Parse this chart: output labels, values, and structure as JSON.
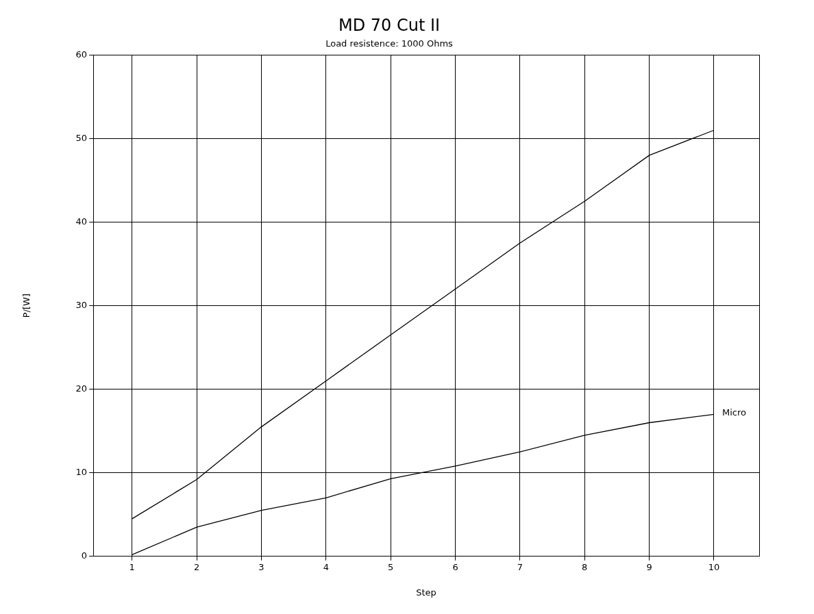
{
  "chart_data": {
    "type": "line",
    "title": "MD 70 Cut II",
    "subtitle": "Load resistence: 1000 Ohms",
    "xlabel": "Step",
    "ylabel": "P/[W]",
    "x": [
      1,
      2,
      3,
      4,
      5,
      6,
      7,
      8,
      9,
      10
    ],
    "series": [
      {
        "color": "#000000",
        "values": [
          4.5,
          9.2,
          15.5,
          21,
          26.5,
          32,
          37.5,
          42.5,
          48,
          51
        ]
      },
      {
        "name": "Micro",
        "color": "#000000",
        "values": [
          0.2,
          3.5,
          5.5,
          7,
          9.3,
          10.8,
          12.5,
          14.5,
          16,
          17
        ]
      }
    ],
    "xlim": [
      0.4,
      10.7
    ],
    "xticks": [
      1,
      2,
      3,
      4,
      5,
      6,
      7,
      8,
      9,
      10
    ],
    "ylim": [
      0,
      60
    ],
    "yticks": [
      0,
      10,
      20,
      30,
      40,
      50,
      60
    ],
    "grid": true,
    "legend": false,
    "marker": "none",
    "line_style": "solid"
  }
}
